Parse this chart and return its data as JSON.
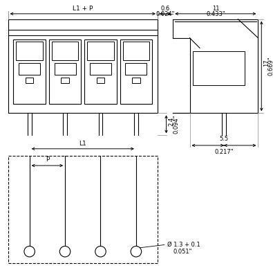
{
  "bg_color": "#ffffff",
  "line_color": "#000000",
  "gray_color": "#888888",
  "dim_color": "#555555",
  "fig_width": 3.95,
  "fig_height": 4.0,
  "dpi": 100,
  "font_size": 6.5,
  "dim_font_size": 6.0,
  "labels": {
    "l1p": "L1 + P",
    "dim_06": "0.6",
    "dim_024": "0.024\"",
    "dim_11": "11",
    "dim_0433": "0.433\"",
    "dim_24": "2.4",
    "dim_0094": "0.094\"",
    "dim_17": "17",
    "dim_0669": "0.669\"",
    "dim_55": "5.5",
    "dim_0217": "0.217\"",
    "l1": "L1",
    "p": "P",
    "hole": "Ø 1.3 + 0.1",
    "dim_0051": "0.051\""
  }
}
